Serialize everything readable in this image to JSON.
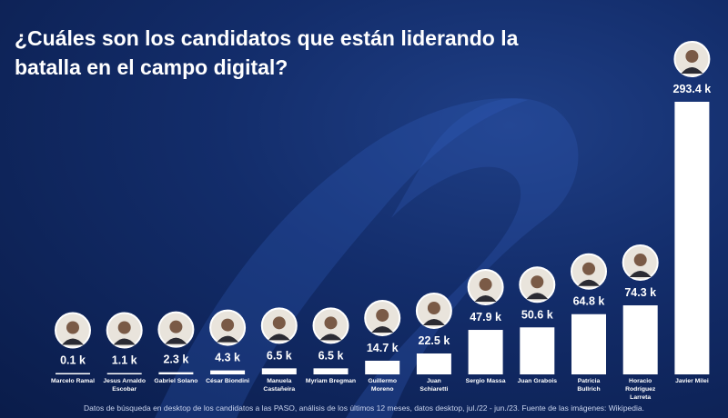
{
  "chart_data": {
    "type": "bar",
    "title": "¿Cuáles son los candidatos que están liderando la batalla en el campo digital?",
    "categories": [
      "Marcelo Ramal",
      "Jesus Arnaldo Escobar",
      "Gabriel Solano",
      "César Biondini",
      "Manuela Castañeira",
      "Myriam Bregman",
      "Guillermo Moreno",
      "Juan Schiaretti",
      "Sergio Massa",
      "Juan Grabois",
      "Patricia Bullrich",
      "Horacio Rodríguez Larreta",
      "Javier Milei"
    ],
    "values": [
      0.1,
      1.1,
      2.3,
      4.3,
      6.5,
      6.5,
      14.7,
      22.5,
      47.9,
      50.6,
      64.8,
      74.3,
      293.4
    ],
    "value_labels": [
      "0.1 k",
      "1.1 k",
      "2.3 k",
      "4.3 k",
      "6.5 k",
      "6.5 k",
      "14.7 k",
      "22.5 k",
      "47.9 k",
      "50.6 k",
      "64.8 k",
      "74.3 k",
      "293.4 k"
    ],
    "unit": "k",
    "ylim": [
      0,
      293.4
    ],
    "xlabel": "",
    "ylabel": "",
    "colors": {
      "bar": "#ffffff",
      "label": "#ffffff",
      "avatar_ring": "#ffffff"
    }
  },
  "footnote": "Datos de búsqueda en desktop de los candidatos a las PASO, análisis de los últimos 12 meses, datos desktop, jul./22 - jun./23. Fuente de las imágenes: Wikipedia."
}
